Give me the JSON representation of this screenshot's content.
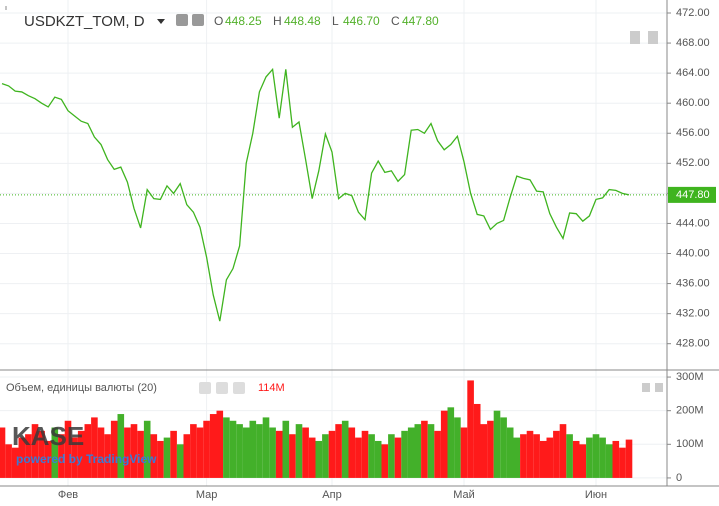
{
  "chart_data": [
    {
      "type": "line",
      "title": "USDKZT_TOM, D",
      "ohlc": [
        {
          "key": "O",
          "value": "448.25"
        },
        {
          "key": "H",
          "value": "448.48"
        },
        {
          "key": "L",
          "value": "446.70"
        },
        {
          "key": "C",
          "value": "447.80"
        }
      ],
      "color": "#3fb41f",
      "values": [
        462.6,
        462.3,
        461.6,
        461.5,
        461.0,
        460.6,
        460.0,
        459.5,
        460.8,
        460.5,
        459.0,
        458.3,
        457.6,
        457.3,
        455.5,
        454.5,
        452.5,
        451.2,
        451.5,
        449.5,
        446.0,
        443.4,
        448.5,
        447.3,
        447.2,
        449.0,
        448.0,
        449.3,
        446.5,
        445.5,
        443.5,
        439.5,
        434.5,
        431.0,
        436.5,
        438.0,
        441.0,
        452.0,
        456.0,
        461.5,
        463.5,
        464.5,
        458.0,
        464.5,
        456.8,
        457.5,
        452.5,
        447.3,
        451.0,
        455.9,
        453.5,
        447.3,
        448.0,
        447.7,
        445.5,
        444.5,
        450.7,
        452.3,
        450.8,
        451.0,
        449.6,
        450.5,
        456.4,
        456.5,
        456.0,
        457.3,
        455.0,
        453.8,
        454.5,
        455.6,
        452.2,
        448.0,
        445.2,
        445.0,
        443.2,
        444.0,
        444.4,
        447.5,
        450.3,
        450.0,
        449.8,
        448.3,
        448.2,
        445.3,
        443.5,
        442.0,
        445.4,
        445.3,
        444.3,
        445.0,
        447.2,
        447.4,
        448.5,
        448.4,
        448.0,
        447.8
      ],
      "ylim": [
        424.5,
        473.73
      ],
      "yticks": [
        {
          "value": 428,
          "label": "428.00"
        },
        {
          "value": 432,
          "label": "432.00"
        },
        {
          "value": 436,
          "label": "436.00"
        },
        {
          "value": 440,
          "label": "440.00"
        },
        {
          "value": 444,
          "label": "444.00"
        },
        {
          "value": 448,
          "label": "448.00"
        },
        {
          "value": 452,
          "label": "452.00"
        },
        {
          "value": 456,
          "label": "456.00"
        },
        {
          "value": 460,
          "label": "460.00"
        },
        {
          "value": 464,
          "label": "464.00"
        },
        {
          "value": 468,
          "label": "468.00"
        },
        {
          "value": 472,
          "label": "472.00"
        }
      ],
      "last_price": {
        "value": 447.8,
        "label": "447.80"
      }
    },
    {
      "type": "bar",
      "title": "Объем, единицы валюты (20)",
      "categories": [
        null,
        null,
        null,
        null,
        null,
        null,
        null,
        null,
        null,
        null,
        "Фев",
        null,
        null,
        null,
        null,
        null,
        null,
        null,
        null,
        null,
        null,
        null,
        null,
        null,
        null,
        null,
        null,
        null,
        null,
        null,
        null,
        "Мар",
        null,
        null,
        null,
        null,
        null,
        null,
        null,
        null,
        null,
        null,
        null,
        null,
        null,
        null,
        null,
        null,
        null,
        null,
        "Апр",
        null,
        null,
        null,
        null,
        null,
        null,
        null,
        null,
        null,
        null,
        null,
        null,
        null,
        null,
        null,
        null,
        null,
        null,
        null,
        "Май",
        null,
        null,
        null,
        null,
        null,
        null,
        null,
        null,
        null,
        null,
        null,
        null,
        null,
        null,
        null,
        null,
        null,
        null,
        null,
        "Июн",
        null,
        null,
        null,
        null,
        null
      ],
      "up_color": "#43b02a",
      "down_color": "#ff1a1a",
      "values": [
        150,
        100,
        90,
        120,
        130,
        160,
        140,
        110,
        150,
        130,
        170,
        120,
        140,
        160,
        180,
        150,
        130,
        170,
        190,
        150,
        160,
        140,
        170,
        130,
        110,
        120,
        140,
        100,
        130,
        160,
        150,
        170,
        190,
        200,
        180,
        170,
        160,
        150,
        170,
        160,
        180,
        150,
        140,
        170,
        130,
        160,
        150,
        120,
        110,
        130,
        140,
        160,
        170,
        150,
        120,
        140,
        130,
        110,
        100,
        130,
        120,
        140,
        150,
        160,
        170,
        160,
        140,
        200,
        210,
        180,
        150,
        290,
        220,
        160,
        170,
        200,
        180,
        150,
        120,
        130,
        140,
        130,
        110,
        120,
        140,
        160,
        130,
        110,
        100,
        120,
        130,
        120,
        100,
        110,
        90,
        114
      ],
      "last_value": {
        "value": 114,
        "label": "114M"
      },
      "ylim": [
        -24,
        321
      ],
      "yticks": [
        {
          "value": 0,
          "label": "0"
        },
        {
          "value": 100,
          "label": "100M"
        },
        {
          "value": 200,
          "label": "200M"
        },
        {
          "value": 300,
          "label": "300M"
        }
      ],
      "watermark": "KASE",
      "watermark_sub": "powered by TradingView"
    }
  ]
}
